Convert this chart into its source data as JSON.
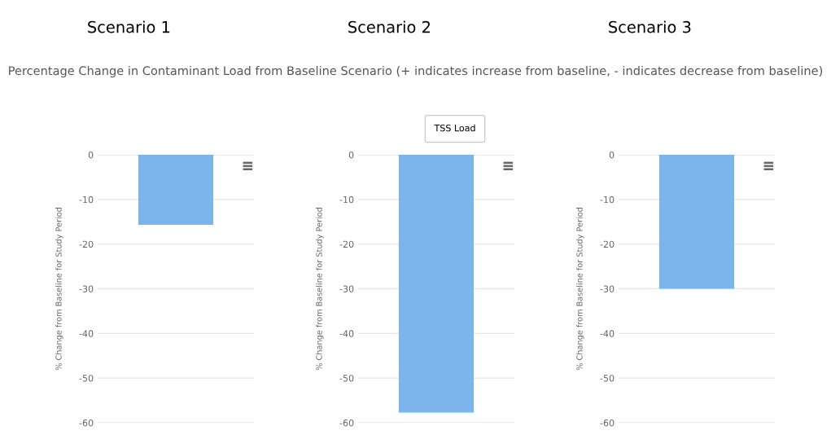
{
  "chart_data": [
    {
      "type": "bar",
      "title": "Scenario 1",
      "subtitle": "Percentage Change in Contaminant Load from Baseline Scenario (+ indicates increase from baseline, - indicates decrease from baseline)",
      "ylabel": "% Change from Baseline for Study Period",
      "categories": [
        null
      ],
      "values": [
        -15.7
      ],
      "color": "#7cb5ec",
      "ylim": [
        -60,
        0
      ],
      "yticks": [
        -60,
        -50,
        -40,
        -30,
        -20,
        -10,
        0
      ],
      "grid": "y"
    },
    {
      "type": "bar",
      "title": "Scenario 2",
      "annotations": [
        "TSS Load"
      ],
      "ylabel": "% Change from Baseline for Study Period",
      "categories": [
        null
      ],
      "values": [
        -57.7
      ],
      "color": "#7cb5ec",
      "ylim": [
        -60,
        0
      ],
      "yticks": [
        -60,
        -50,
        -40,
        -30,
        -20,
        -10,
        0
      ],
      "grid": "y"
    },
    {
      "type": "bar",
      "title": "Scenario 3",
      "ylabel": "% Change from Baseline for Study Period",
      "categories": [
        null
      ],
      "values": [
        -30
      ],
      "color": "#7cb5ec",
      "ylim": [
        -60,
        0
      ],
      "yticks": [
        -60,
        -50,
        -40,
        -30,
        -20,
        -10,
        0
      ],
      "grid": "y"
    }
  ]
}
